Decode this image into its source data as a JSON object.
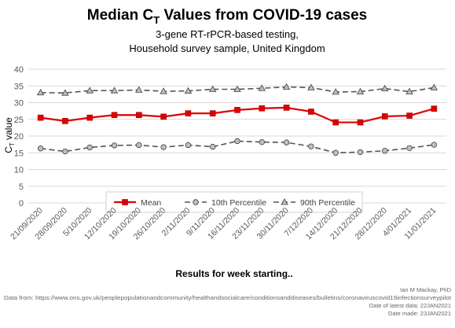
{
  "chart_data": {
    "type": "line",
    "title": "Median C",
    "title_subscript": "T",
    "title_suffix": " Values from COVID-19 cases",
    "subtitle_lines": [
      "3-gene RT-rPCR-based testing,",
      "Household survey sample, United Kingdom"
    ],
    "ylabel": "C",
    "ylabel_subscript": "T",
    "ylabel_suffix": " value",
    "xlabel": "Results for week starting..",
    "ylim": [
      0,
      40
    ],
    "yticks": [
      0,
      5,
      10,
      15,
      20,
      25,
      30,
      35,
      40
    ],
    "grid": "horizontal",
    "legend_position": "bottom-inside",
    "categories": [
      "21/09/2020",
      "28/09/2020",
      "5/10/2020",
      "12/10/2020",
      "19/10/2020",
      "26/10/2020",
      "2/11/2020",
      "9/11/2020",
      "16/11/2020",
      "23/11/2020",
      "30/11/2020",
      "7/12/2020",
      "14/12/2020",
      "21/12/2020",
      "28/12/2020",
      "4/01/2021",
      "11/01/2021"
    ],
    "series": [
      {
        "name": "Mean",
        "color": "#e00000",
        "style": "solid",
        "marker": "square",
        "values": [
          25.5,
          24.5,
          25.5,
          26.3,
          26.3,
          25.8,
          26.8,
          26.8,
          27.8,
          28.3,
          28.5,
          27.3,
          24.1,
          24.1,
          25.9,
          26.1,
          28.2
        ]
      },
      {
        "name": "10th Percentile",
        "color": "#555555",
        "style": "dashed",
        "marker": "circle",
        "values": [
          16.3,
          15.4,
          16.6,
          17.2,
          17.3,
          16.7,
          17.3,
          16.8,
          18.5,
          18.2,
          18.1,
          16.9,
          15.0,
          15.2,
          15.6,
          16.4,
          17.4
        ]
      },
      {
        "name": "90th Percentile",
        "color": "#555555",
        "style": "dashed",
        "marker": "triangle",
        "values": [
          33.0,
          32.9,
          33.6,
          33.6,
          33.8,
          33.4,
          33.5,
          34.0,
          34.0,
          34.3,
          34.7,
          34.5,
          33.2,
          33.3,
          34.2,
          33.3,
          34.5
        ]
      }
    ],
    "colors": {
      "grid": "#d9d9d9",
      "axis_text": "#595959",
      "marker_fill_grey": "#bfbfbf",
      "legend_border": "#d0d0d0"
    }
  },
  "credits": {
    "author": "Ian M Mackay, PhD",
    "source": "Data from: https://www.ons.gov.uk/peoplepopulationandcommunity/healthandsocialcare/conditionsanddiseases/bulletins/coronaviruscovid19infectionsurveypilot",
    "latest_data": "Date of latest data: 22JAN2021",
    "date_made": "Date made: 23JAN2021"
  }
}
